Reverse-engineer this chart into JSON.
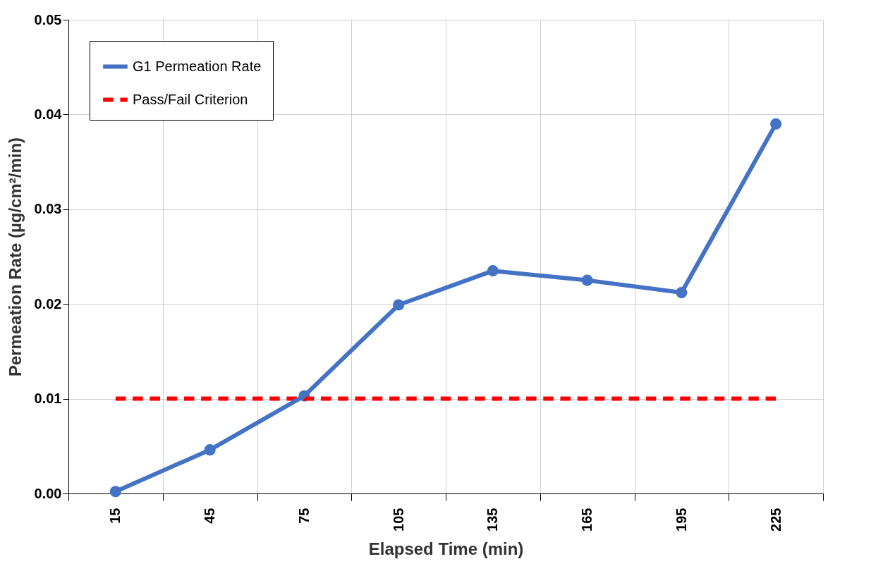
{
  "chart_data": {
    "type": "line",
    "xlabel": "Elapsed Time (min)",
    "ylabel": "Permeation Rate (µg/cm²/min)",
    "categories": [
      "15",
      "45",
      "75",
      "105",
      "135",
      "165",
      "195",
      "225"
    ],
    "series": [
      {
        "name": "G1 Permeation Rate",
        "color": "#4472c4",
        "marker": "circle",
        "line_style": "solid",
        "values": [
          0.0002,
          0.0046,
          0.0103,
          0.0199,
          0.0235,
          0.0225,
          0.0212,
          0.039
        ]
      },
      {
        "name": "Pass/Fail Criterion",
        "color": "#ff0000",
        "marker": "none",
        "line_style": "dashed",
        "values": [
          0.01,
          0.01,
          0.01,
          0.01,
          0.01,
          0.01,
          0.01,
          0.01
        ]
      }
    ],
    "ylim": [
      0,
      0.05
    ],
    "yticks": [
      {
        "value": 0,
        "label": "0.00"
      },
      {
        "value": 0.01,
        "label": "0.01"
      },
      {
        "value": 0.02,
        "label": "0.02"
      },
      {
        "value": 0.03,
        "label": "0.03"
      },
      {
        "value": 0.04,
        "label": "0.04"
      },
      {
        "value": 0.05,
        "label": "0.05"
      }
    ],
    "grid": true,
    "legend": "top left"
  }
}
